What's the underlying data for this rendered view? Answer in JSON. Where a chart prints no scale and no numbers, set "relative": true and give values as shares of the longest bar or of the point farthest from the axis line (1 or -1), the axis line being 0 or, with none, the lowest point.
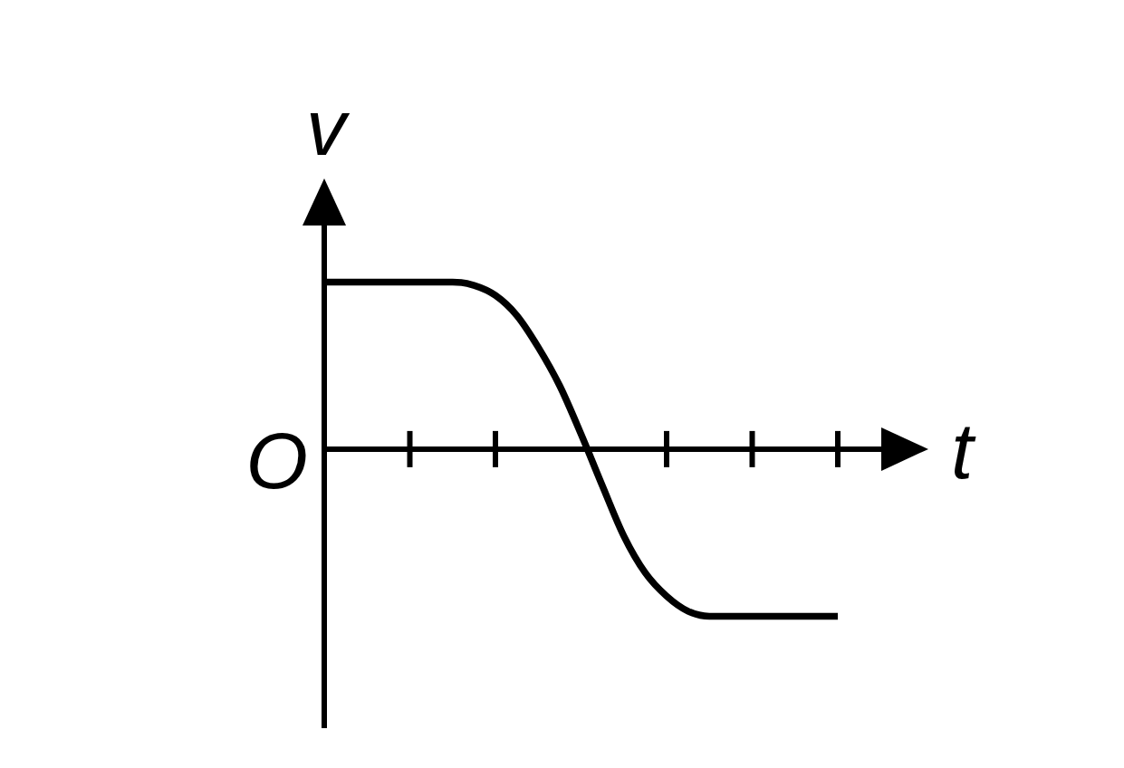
{
  "chart_data": {
    "type": "line",
    "xlabel": "t",
    "ylabel": "v",
    "relative": true,
    "categories": [
      null,
      null,
      null,
      null,
      null,
      null,
      null,
      null,
      null,
      null,
      null,
      null,
      null,
      null,
      null,
      null,
      null,
      null,
      null,
      null,
      null,
      null,
      null,
      null,
      null
    ],
    "series": [
      {
        "color": "#000000",
        "values": [
          1,
          1,
          1,
          1,
          1,
          1,
          1,
          0.98,
          0.92,
          0.8,
          0.61,
          0.38,
          0.09,
          -0.22,
          -0.52,
          -0.74,
          -0.88,
          -0.97,
          -1,
          -1,
          -1,
          -1,
          -1,
          -1,
          -1
        ]
      }
    ],
    "marker": "none",
    "line_style": "solid",
    "annotations": [
      "O"
    ]
  }
}
